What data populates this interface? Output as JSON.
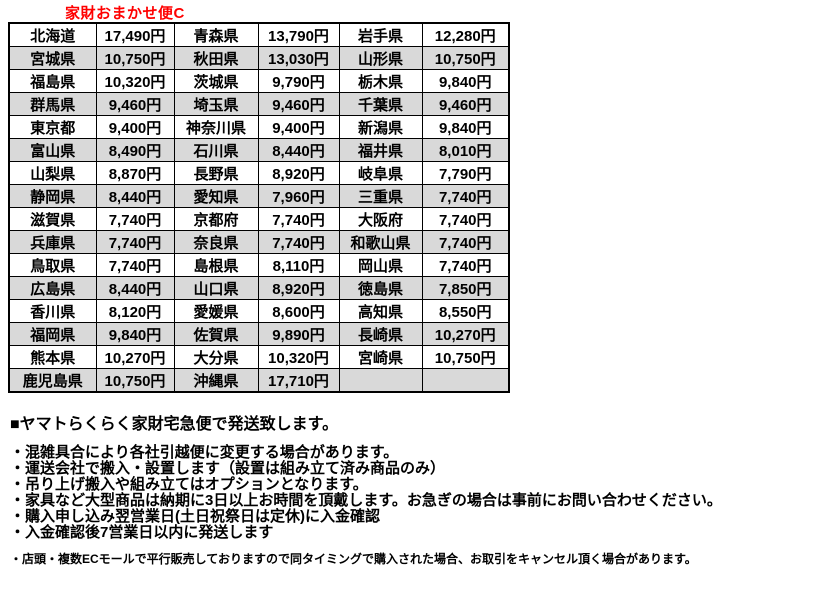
{
  "title": "家財おまかせ便C",
  "colors": {
    "title_red": "#ff0000",
    "row_alt_gray": "#d9d9d9",
    "table_border": "#000000"
  },
  "shipping_table": {
    "columns_per_row": [
      "prefecture",
      "price",
      "prefecture",
      "price",
      "prefecture",
      "price"
    ],
    "rows": [
      [
        "北海道",
        "17,490円",
        "青森県",
        "13,790円",
        "岩手県",
        "12,280円"
      ],
      [
        "宮城県",
        "10,750円",
        "秋田県",
        "13,030円",
        "山形県",
        "10,750円"
      ],
      [
        "福島県",
        "10,320円",
        "茨城県",
        "9,790円",
        "栃木県",
        "9,840円"
      ],
      [
        "群馬県",
        "9,460円",
        "埼玉県",
        "9,460円",
        "千葉県",
        "9,460円"
      ],
      [
        "東京都",
        "9,400円",
        "神奈川県",
        "9,400円",
        "新潟県",
        "9,840円"
      ],
      [
        "富山県",
        "8,490円",
        "石川県",
        "8,440円",
        "福井県",
        "8,010円"
      ],
      [
        "山梨県",
        "8,870円",
        "長野県",
        "8,920円",
        "岐阜県",
        "7,790円"
      ],
      [
        "静岡県",
        "8,440円",
        "愛知県",
        "7,960円",
        "三重県",
        "7,740円"
      ],
      [
        "滋賀県",
        "7,740円",
        "京都府",
        "7,740円",
        "大阪府",
        "7,740円"
      ],
      [
        "兵庫県",
        "7,740円",
        "奈良県",
        "7,740円",
        "和歌山県",
        "7,740円"
      ],
      [
        "鳥取県",
        "7,740円",
        "島根県",
        "8,110円",
        "岡山県",
        "7,740円"
      ],
      [
        "広島県",
        "8,440円",
        "山口県",
        "8,920円",
        "徳島県",
        "7,850円"
      ],
      [
        "香川県",
        "8,120円",
        "愛媛県",
        "8,600円",
        "高知県",
        "8,550円"
      ],
      [
        "福岡県",
        "9,840円",
        "佐賀県",
        "9,890円",
        "長崎県",
        "10,270円"
      ],
      [
        "熊本県",
        "10,270円",
        "大分県",
        "10,320円",
        "宮崎県",
        "10,750円"
      ],
      [
        "鹿児島県",
        "10,750円",
        "沖縄県",
        "17,710円",
        "",
        ""
      ]
    ]
  },
  "notes": {
    "heading": "■ヤマトらくらく家財宅急便で発送致します。",
    "bullets": [
      "・混雑具合により各社引越便に変更する場合があります。",
      "・運送会社で搬入・設置します（設置は組み立て済み商品のみ）",
      "・吊り上げ搬入や組み立てはオプションとなります。",
      "・家具など大型商品は納期に3日以上お時間を頂戴します。お急ぎの場合は事前にお問い合わせください。",
      "・購入申し込み翌営業日(土日祝祭日は定休)に入金確認",
      "・入金確認後7営業日以内に発送します"
    ],
    "small_note": "・店頭・複数ECモールで平行販売しておりますので同タイミングで購入された場合、お取引をキャンセル頂く場合があります。"
  }
}
